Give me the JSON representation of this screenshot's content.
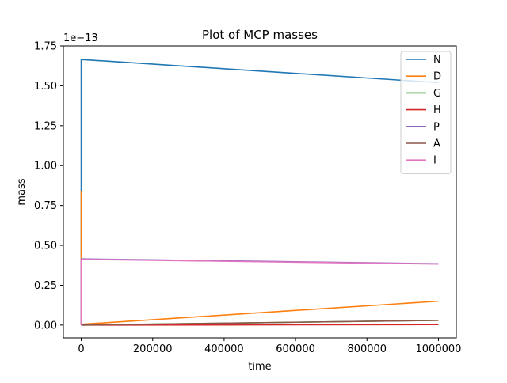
{
  "chart_data": {
    "type": "line",
    "title": "Plot of MCP masses",
    "xlabel": "time",
    "ylabel": "mass",
    "y_offset_text": "1e−13",
    "y_scale_exponent": -13,
    "xlim": [
      -50000,
      1050000
    ],
    "ylim": [
      -0.08,
      1.75
    ],
    "x_ticks": [
      0,
      200000,
      400000,
      600000,
      800000,
      1000000
    ],
    "x_tick_labels": [
      "0",
      "200000",
      "400000",
      "600000",
      "800000",
      "1000000"
    ],
    "y_ticks": [
      0,
      0.25,
      0.5,
      0.75,
      1.0,
      1.25,
      1.5,
      1.75
    ],
    "y_tick_labels": [
      "0.00",
      "0.25",
      "0.50",
      "0.75",
      "1.00",
      "1.25",
      "1.50",
      "1.75"
    ],
    "grid": false,
    "legend_position": "top-right",
    "series": [
      {
        "name": "N",
        "color": "#1f77b4",
        "x": [
          0,
          0,
          1000000
        ],
        "y": [
          0,
          1.665,
          1.52
        ]
      },
      {
        "name": "D",
        "color": "#ff7f0e",
        "x": [
          0,
          0,
          1000000
        ],
        "y": [
          0.84,
          0.005,
          0.15
        ]
      },
      {
        "name": "G",
        "color": "#2ca02c",
        "x": [
          0,
          1000000
        ],
        "y": [
          0,
          0.03
        ]
      },
      {
        "name": "H",
        "color": "#d62728",
        "x": [
          0,
          1000000
        ],
        "y": [
          0,
          0.003
        ]
      },
      {
        "name": "P",
        "color": "#9467bd",
        "x": [
          0,
          0,
          1000000
        ],
        "y": [
          0,
          0.415,
          0.385
        ]
      },
      {
        "name": "A",
        "color": "#8c564b",
        "x": [
          0,
          1000000
        ],
        "y": [
          0,
          0.03
        ]
      },
      {
        "name": "I",
        "color": "#e377c2",
        "x": [
          0,
          0,
          1000000
        ],
        "y": [
          0,
          0.412,
          0.383
        ]
      }
    ]
  }
}
